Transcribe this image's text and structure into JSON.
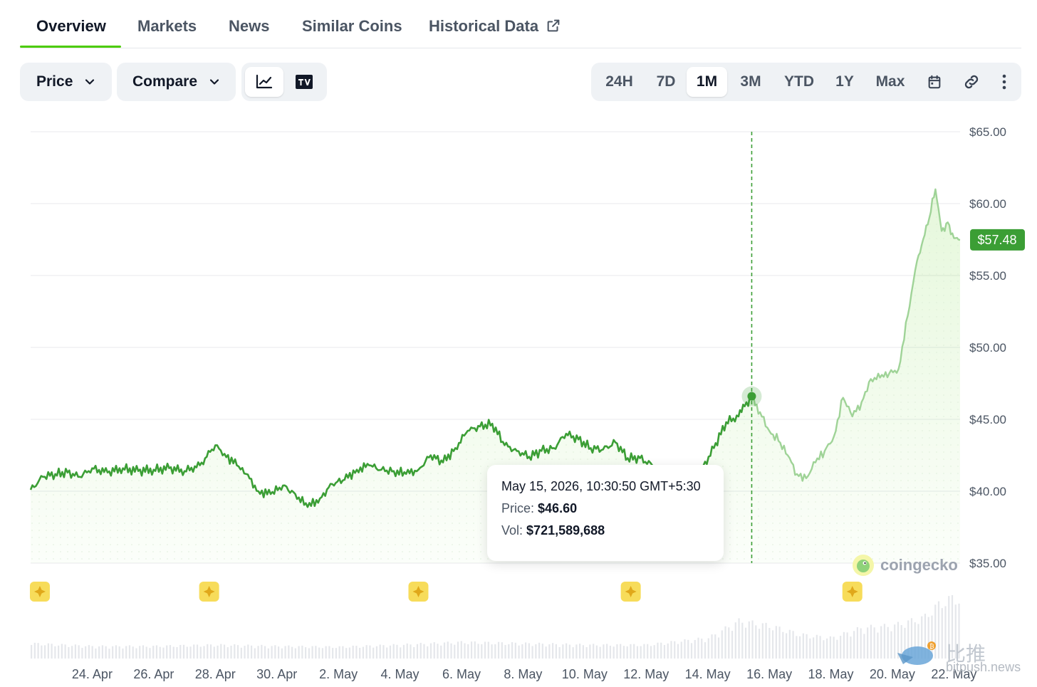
{
  "tabs": [
    {
      "label": "Overview",
      "active": true
    },
    {
      "label": "Markets",
      "active": false
    },
    {
      "label": "News",
      "active": false
    },
    {
      "label": "Similar Coins",
      "active": false
    },
    {
      "label": "Historical Data",
      "active": false
    }
  ],
  "toolbar": {
    "price_label": "Price",
    "compare_label": "Compare",
    "chart_modes": [
      {
        "icon": "line-chart-icon",
        "active": true
      },
      {
        "icon": "tradingview-icon",
        "active": false
      }
    ],
    "ranges": [
      {
        "label": "24H",
        "active": false
      },
      {
        "label": "7D",
        "active": false
      },
      {
        "label": "1M",
        "active": true
      },
      {
        "label": "3M",
        "active": false
      },
      {
        "label": "YTD",
        "active": false
      },
      {
        "label": "1Y",
        "active": false
      },
      {
        "label": "Max",
        "active": false
      }
    ],
    "extra_icons": [
      "calendar-icon",
      "link-icon",
      "more-vertical-icon"
    ]
  },
  "tooltip": {
    "date": "May 15, 2026, 10:30:50 GMT+5:30",
    "price_label": "Price:",
    "price_value": "$46.60",
    "vol_label": "Vol:",
    "vol_value": "$721,589,688"
  },
  "current_price_label": "$57.48",
  "brand": {
    "name": "coingecko"
  },
  "watermark": {
    "text": "比推",
    "url": "bitpush.news"
  },
  "colors": {
    "line": "#3b9e35",
    "line_light": "#9fd397",
    "accent": "#4bcc00",
    "price_badge": "#3b9e35"
  },
  "chart_data": {
    "type": "area",
    "x_tick_labels": [
      "24. Apr",
      "26. Apr",
      "28. Apr",
      "30. Apr",
      "2. May",
      "4. May",
      "6. May",
      "8. May",
      "10. May",
      "12. May",
      "14. May",
      "16. May",
      "18. May",
      "20. May",
      "22. May"
    ],
    "y_tick_labels": [
      "$65.00",
      "$60.00",
      "$55.00",
      "$50.00",
      "$45.00",
      "$40.00",
      "$35.00"
    ],
    "ylim": [
      35,
      65
    ],
    "x_days_range": [
      22.0,
      52.2
    ],
    "hover_x_day": 45.43,
    "hover_price": 46.6,
    "current_price": 57.48,
    "grid": true,
    "event_marker_days": [
      22.3,
      27.8,
      34.6,
      41.5,
      48.7
    ],
    "series": [
      {
        "x_days": [
          22.0,
          22.4,
          22.8,
          23.2,
          23.6,
          24.0,
          24.5,
          25.0,
          25.5,
          26.0,
          26.5,
          27.0,
          27.5,
          28.0,
          28.3,
          28.7,
          29.0,
          29.4,
          29.8,
          30.2,
          30.6,
          31.0,
          31.4,
          31.8,
          32.2,
          32.6,
          33.0,
          33.4,
          33.8,
          34.2,
          34.6,
          35.0,
          35.4,
          35.8,
          36.2,
          36.6,
          37.0,
          37.4,
          37.8,
          38.2,
          38.6,
          39.0,
          39.4,
          39.8,
          40.2,
          40.6,
          41.0,
          41.4,
          41.8,
          42.2,
          42.6,
          43.0,
          43.4,
          43.8,
          44.2,
          44.6,
          45.0,
          45.2,
          45.43,
          45.7,
          46.0,
          46.3,
          46.6,
          46.9,
          47.2,
          47.5,
          47.8,
          48.1,
          48.4,
          48.7,
          49.0,
          49.3,
          49.6,
          49.9,
          50.2,
          50.5,
          50.8,
          51.0,
          51.2,
          51.4,
          51.6,
          51.8,
          52.0,
          52.2
        ],
        "values": [
          40.1,
          41.0,
          41.2,
          41.3,
          41.0,
          41.6,
          41.3,
          41.6,
          41.4,
          41.5,
          41.6,
          41.4,
          41.8,
          43.2,
          42.6,
          41.8,
          41.2,
          40.0,
          39.8,
          40.4,
          39.8,
          38.9,
          39.5,
          40.5,
          40.8,
          41.5,
          41.8,
          41.5,
          41.4,
          41.2,
          41.5,
          42.5,
          42.0,
          43.0,
          44.2,
          44.5,
          44.7,
          43.2,
          42.8,
          42.4,
          42.8,
          43.0,
          44.0,
          43.6,
          43.0,
          42.9,
          43.4,
          42.3,
          42.3,
          41.8,
          38.8,
          37.8,
          39.0,
          41.5,
          43.0,
          44.8,
          45.2,
          45.9,
          46.6,
          45.5,
          44.2,
          43.5,
          42.5,
          41.2,
          40.9,
          42.0,
          42.8,
          43.8,
          46.5,
          45.2,
          46.2,
          47.8,
          47.9,
          48.2,
          48.5,
          52.2,
          56.0,
          57.5,
          59.0,
          61.0,
          58.1,
          58.7,
          57.6,
          57.48
        ]
      }
    ],
    "volume": {
      "x_days": [
        22.0,
        24.0,
        26.0,
        28.0,
        30.0,
        32.0,
        34.0,
        36.0,
        38.0,
        40.0,
        42.0,
        44.0,
        45.0,
        46.0,
        47.0,
        48.0,
        49.0,
        50.0,
        51.0,
        51.5,
        52.0,
        52.2
      ],
      "relative": [
        0.22,
        0.18,
        0.18,
        0.2,
        0.18,
        0.17,
        0.2,
        0.24,
        0.22,
        0.2,
        0.2,
        0.3,
        0.55,
        0.48,
        0.35,
        0.3,
        0.45,
        0.48,
        0.6,
        0.8,
        0.9,
        0.85
      ]
    }
  }
}
